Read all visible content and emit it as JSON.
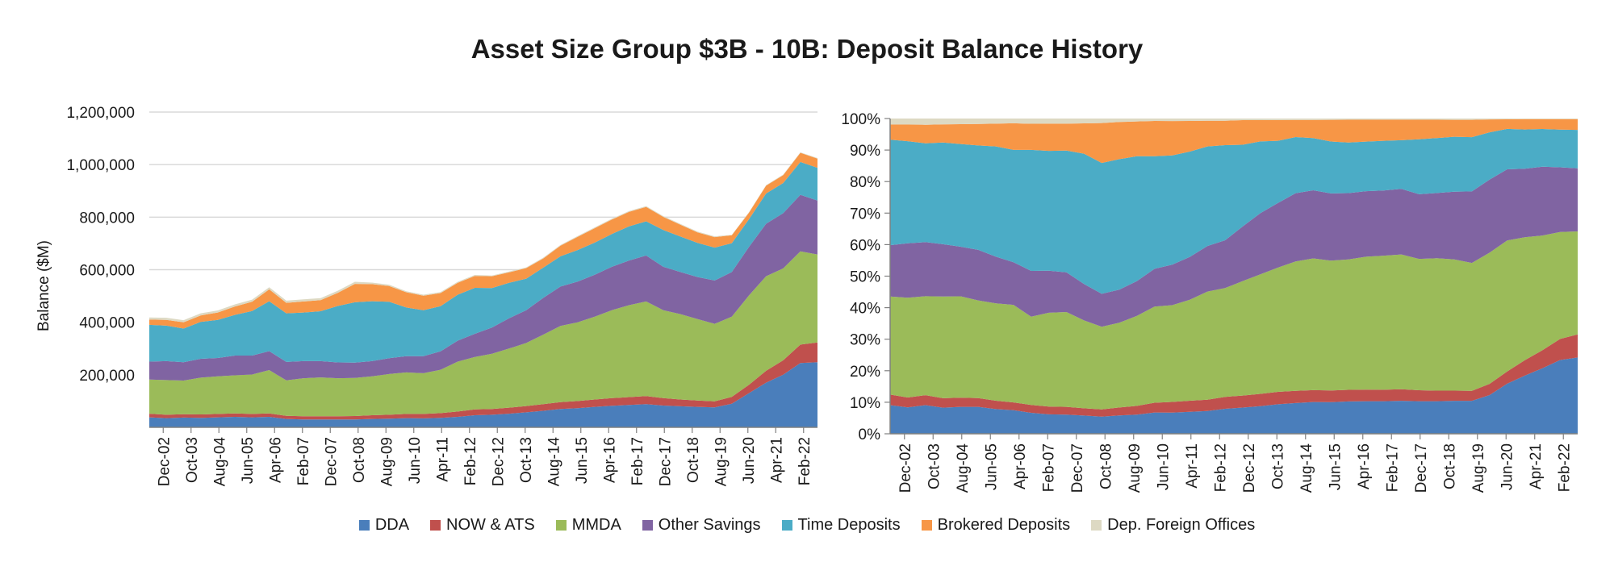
{
  "title": "Asset Size Group $3B - 10B: Deposit Balance History",
  "colors": {
    "DDA": "#4a7ebb",
    "NOW & ATS": "#c0504d",
    "MMDA": "#9bbb59",
    "Other Savings": "#8064a2",
    "Time Deposits": "#4bacc6",
    "Brokered Deposits": "#f79646",
    "Dep. Foreign Offices": "#ddd9c3"
  },
  "chart_data": [
    {
      "type": "area",
      "subtype": "stacked",
      "ylabel": "Balance ($M)",
      "ylim": [
        0,
        1200000
      ],
      "yticks": [
        "200,000",
        "400,000",
        "600,000",
        "800,000",
        "1,000,000",
        "1,200,000"
      ],
      "ytick_values": [
        200000,
        400000,
        600000,
        800000,
        1000000,
        1200000
      ],
      "grid": true,
      "x_tick_labels": [
        "Dec-02",
        "Oct-03",
        "Aug-04",
        "Jun-05",
        "Apr-06",
        "Feb-07",
        "Dec-07",
        "Oct-08",
        "Aug-09",
        "Jun-10",
        "Apr-11",
        "Feb-12",
        "Dec-12",
        "Oct-13",
        "Aug-14",
        "Jun-15",
        "Apr-16",
        "Feb-17",
        "Dec-17",
        "Oct-18",
        "Aug-19",
        "Jun-20",
        "Apr-21",
        "Feb-22"
      ],
      "x": [
        "Dec-02",
        "Jun-03",
        "Dec-03",
        "Jun-04",
        "Dec-04",
        "Jun-05",
        "Dec-05",
        "Jun-06",
        "Dec-06",
        "Jun-07",
        "Dec-07",
        "Jun-08",
        "Dec-08",
        "Jun-09",
        "Dec-09",
        "Jun-10",
        "Dec-10",
        "Jun-11",
        "Dec-11",
        "Jun-12",
        "Dec-12",
        "Jun-13",
        "Dec-13",
        "Jun-14",
        "Dec-14",
        "Jun-15",
        "Dec-15",
        "Jun-16",
        "Dec-16",
        "Jun-17",
        "Dec-17",
        "Jun-18",
        "Dec-18",
        "Jun-19",
        "Dec-19",
        "Jun-20",
        "Dec-20",
        "Jun-21",
        "Dec-21",
        "Jun-22"
      ],
      "series": [
        {
          "name": "DDA",
          "values": [
            38000,
            35000,
            37000,
            36000,
            38000,
            40000,
            38000,
            40000,
            32000,
            30000,
            30000,
            30000,
            30000,
            32000,
            33000,
            35000,
            34000,
            36000,
            40000,
            46000,
            48000,
            52000,
            57000,
            63000,
            70000,
            73000,
            78000,
            82000,
            85000,
            88000,
            83000,
            80000,
            78000,
            76000,
            90000,
            130000,
            170000,
            200000,
            245000,
            248000
          ]
        },
        {
          "name": "NOW & ATS",
          "values": [
            14000,
            13000,
            13000,
            13000,
            13000,
            13000,
            13000,
            13000,
            12000,
            12000,
            12000,
            12000,
            13000,
            14000,
            15000,
            16000,
            17000,
            18000,
            20000,
            22000,
            22000,
            23000,
            24000,
            25000,
            26000,
            27000,
            28000,
            29000,
            30000,
            31000,
            28000,
            26000,
            24000,
            23000,
            26000,
            32000,
            45000,
            55000,
            70000,
            75000
          ]
        },
        {
          "name": "MMDA",
          "values": [
            130000,
            132000,
            128000,
            140000,
            143000,
            145000,
            150000,
            165000,
            135000,
            145000,
            148000,
            145000,
            145000,
            148000,
            155000,
            158000,
            155000,
            165000,
            190000,
            200000,
            210000,
            225000,
            240000,
            265000,
            290000,
            300000,
            315000,
            335000,
            350000,
            360000,
            335000,
            325000,
            310000,
            295000,
            305000,
            340000,
            360000,
            350000,
            355000,
            335000
          ]
        },
        {
          "name": "Other Savings",
          "values": [
            68000,
            72000,
            70000,
            72000,
            70000,
            75000,
            72000,
            72000,
            70000,
            65000,
            62000,
            60000,
            58000,
            58000,
            60000,
            62000,
            65000,
            70000,
            80000,
            88000,
            100000,
            115000,
            125000,
            140000,
            150000,
            155000,
            160000,
            165000,
            170000,
            175000,
            165000,
            160000,
            160000,
            165000,
            170000,
            185000,
            200000,
            210000,
            215000,
            205000
          ]
        },
        {
          "name": "Time Deposits",
          "values": [
            140000,
            135000,
            128000,
            140000,
            145000,
            155000,
            170000,
            190000,
            185000,
            185000,
            190000,
            215000,
            230000,
            228000,
            215000,
            185000,
            175000,
            172000,
            175000,
            175000,
            150000,
            135000,
            120000,
            115000,
            115000,
            120000,
            122000,
            125000,
            130000,
            130000,
            140000,
            135000,
            130000,
            125000,
            110000,
            105000,
            115000,
            115000,
            125000,
            125000
          ]
        },
        {
          "name": "Brokered Deposits",
          "values": [
            20000,
            22000,
            24000,
            25000,
            28000,
            32000,
            35000,
            45000,
            40000,
            42000,
            42000,
            50000,
            70000,
            65000,
            60000,
            58000,
            55000,
            50000,
            45000,
            45000,
            45000,
            40000,
            40000,
            35000,
            40000,
            50000,
            55000,
            55000,
            55000,
            55000,
            50000,
            45000,
            40000,
            40000,
            30000,
            25000,
            30000,
            30000,
            35000,
            35000
          ]
        },
        {
          "name": "Dep. Foreign Offices",
          "values": [
            8000,
            8000,
            8000,
            8000,
            8000,
            8000,
            8000,
            8000,
            8000,
            8000,
            8000,
            8000,
            8000,
            6000,
            5000,
            4000,
            4000,
            4000,
            4000,
            4000,
            3000,
            3000,
            3000,
            3000,
            3000,
            3000,
            3000,
            3000,
            3000,
            3000,
            3000,
            3000,
            3000,
            3000,
            2000,
            2000,
            2000,
            2000,
            2000,
            2000
          ]
        }
      ]
    },
    {
      "type": "area",
      "subtype": "stacked-100-percent",
      "ylim": [
        0,
        100
      ],
      "yticks": [
        "0%",
        "10%",
        "20%",
        "30%",
        "40%",
        "50%",
        "60%",
        "70%",
        "80%",
        "90%",
        "100%"
      ],
      "ytick_values": [
        0,
        10,
        20,
        30,
        40,
        50,
        60,
        70,
        80,
        90,
        100
      ],
      "grid": false,
      "x_tick_labels": [
        "Dec-02",
        "Oct-03",
        "Aug-04",
        "Jun-05",
        "Apr-06",
        "Feb-07",
        "Dec-07",
        "Oct-08",
        "Aug-09",
        "Jun-10",
        "Apr-11",
        "Feb-12",
        "Dec-12",
        "Oct-13",
        "Aug-14",
        "Jun-15",
        "Apr-16",
        "Feb-17",
        "Dec-17",
        "Oct-18",
        "Aug-19",
        "Jun-20",
        "Apr-21",
        "Feb-22"
      ],
      "series_source": "same as chart 1, normalized to percent of total"
    }
  ],
  "legend": [
    {
      "label": "DDA",
      "color": "#4a7ebb"
    },
    {
      "label": "NOW & ATS",
      "color": "#c0504d"
    },
    {
      "label": "MMDA",
      "color": "#9bbb59"
    },
    {
      "label": "Other Savings",
      "color": "#8064a2"
    },
    {
      "label": "Time Deposits",
      "color": "#4bacc6"
    },
    {
      "label": "Brokered Deposits",
      "color": "#f79646"
    },
    {
      "label": "Dep. Foreign Offices",
      "color": "#ddd9c3"
    }
  ]
}
